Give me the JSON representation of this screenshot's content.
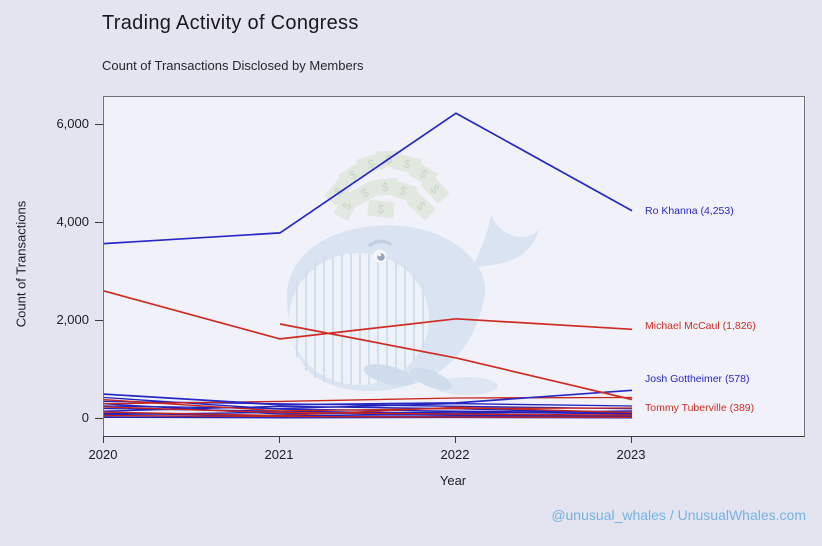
{
  "page": {
    "title": "Trading Activity of Congress",
    "subtitle": "Count of Transactions Disclosed by Members",
    "footer_credit": "@unusual_whales / UnusualWhales.com",
    "footer_color": "#74b2e0",
    "background_color": "#e4e4f1",
    "plot_background_color": "#f1f2f9"
  },
  "chart_data": {
    "type": "line",
    "title": "Trading Activity of Congress",
    "subtitle": "Count of Transactions Disclosed by Members",
    "xlabel": "Year",
    "ylabel": "Count of Transactions",
    "x": [
      2020,
      2021,
      2022,
      2023
    ],
    "x_tick_labels": [
      "2020",
      "2021",
      "2022",
      "2023"
    ],
    "y_ticks": [
      0,
      2000,
      4000,
      6000
    ],
    "y_tick_labels": [
      "0",
      "2,000",
      "4,000",
      "6,000"
    ],
    "ylim": [
      0,
      6580
    ],
    "grid": false,
    "legend_position": "right-edge inline annotations",
    "party_colors": {
      "blue": "#2727c4",
      "red": "#cd2d23"
    },
    "series": [
      {
        "name": "Ro Khanna",
        "color": "#2727c4",
        "values": [
          3580,
          3800,
          6250,
          4253
        ],
        "annotation": "Ro Khanna (4,253)",
        "annotation_dy": 0
      },
      {
        "name": "Michael McCaul",
        "color": "#cd2d23",
        "values": [
          2610,
          1630,
          2040,
          1826
        ],
        "annotation": "Michael McCaul (1,826)",
        "annotation_dy": -3
      },
      {
        "name": "Josh Gottheimer",
        "color": "#2727c4",
        "values": [
          500,
          280,
          320,
          578
        ],
        "annotation": "Josh Gottheimer (578)",
        "annotation_dy": -11
      },
      {
        "name": "Tommy Tuberville",
        "color": "#cd2d23",
        "values": [
          null,
          1935,
          1240,
          389
        ],
        "annotation": "Tommy Tuberville (389)",
        "annotation_dy": 8
      }
    ],
    "unlabeled_series": [
      {
        "color": "#2323bb",
        "values": [
          430,
          190,
          150,
          120
        ]
      },
      {
        "color": "#2323bb",
        "values": [
          350,
          300,
          250,
          200
        ]
      },
      {
        "color": "#2323bb",
        "values": [
          300,
          90,
          130,
          95
        ]
      },
      {
        "color": "#2323bb",
        "values": [
          255,
          205,
          305,
          255
        ]
      },
      {
        "color": "#2323bb",
        "values": [
          205,
          150,
          105,
          155
        ]
      },
      {
        "color": "#2323bb",
        "values": [
          150,
          250,
          200,
          105
        ]
      },
      {
        "color": "#2323bb",
        "values": [
          105,
          55,
          85,
          60
        ]
      },
      {
        "color": "#2323bb",
        "values": [
          80,
          125,
          65,
          45
        ]
      },
      {
        "color": "#2323bb",
        "values": [
          55,
          30,
          45,
          30
        ]
      },
      {
        "color": "#2323bb",
        "values": [
          25,
          15,
          20,
          15
        ]
      },
      {
        "color": "#c7251c",
        "values": [
          385,
          155,
          205,
          215
        ]
      },
      {
        "color": "#c7251c",
        "values": [
          300,
          350,
          420,
          430
        ]
      },
      {
        "color": "#c7251c",
        "values": [
          235,
          120,
          90,
          70
        ]
      },
      {
        "color": "#c7251c",
        "values": [
          130,
          60,
          230,
          120
        ]
      },
      {
        "color": "#c7251c",
        "values": [
          60,
          40,
          30,
          25
        ]
      }
    ],
    "watermark": "unusual whales cartoon whale with spray of dollar bills"
  }
}
